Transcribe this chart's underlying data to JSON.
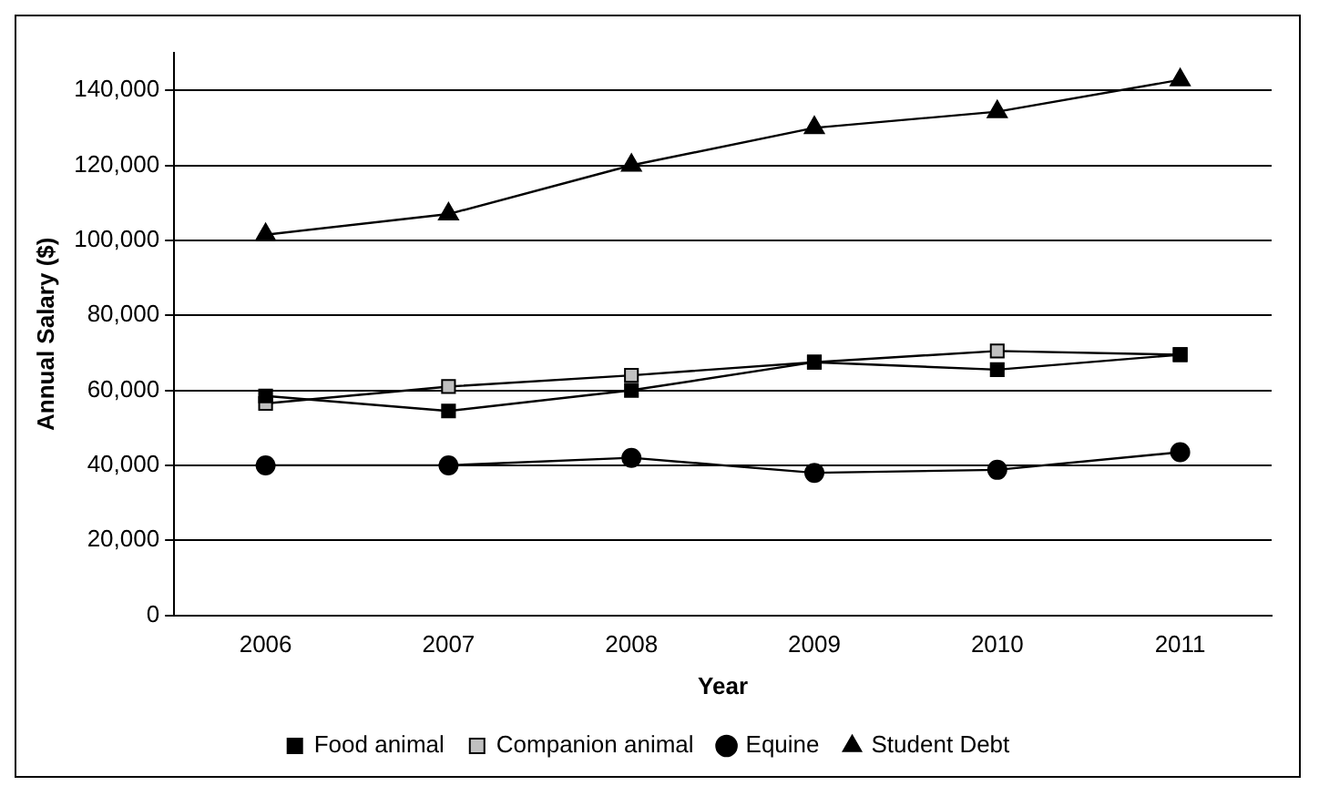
{
  "chart_data": {
    "type": "line",
    "xlabel": "Year",
    "ylabel": "Annual Salary ($)",
    "categories": [
      "2006",
      "2007",
      "2008",
      "2009",
      "2010",
      "2011"
    ],
    "series": [
      {
        "name": "Food animal",
        "color": "#000000",
        "marker": "square",
        "values": [
          58500,
          54500,
          60000,
          67500,
          65500,
          69500
        ]
      },
      {
        "name": "Companion animal",
        "color": "#000000",
        "colors": [
          "#c0c0c0",
          "#c0c0c0",
          "#c0c0c0",
          "#c0c0c0",
          "#c0c0c0",
          "#c0c0c0"
        ],
        "marker": "square",
        "values": [
          56500,
          61000,
          64000,
          67500,
          70500,
          69500
        ]
      },
      {
        "name": "Equine",
        "color": "#000000",
        "marker": "circle",
        "values": [
          40000,
          40000,
          42000,
          38000,
          38800,
          43500
        ]
      },
      {
        "name": "Student Debt",
        "color": "#000000",
        "marker": "triangle",
        "values": [
          101500,
          107000,
          120000,
          130000,
          134300,
          142800
        ]
      }
    ],
    "ylim": [
      0,
      150000
    ],
    "yticks": [
      0,
      {
        "value": 20000,
        "label": "20,000"
      },
      {
        "value": 40000,
        "label": "40,000"
      },
      {
        "value": 60000,
        "label": "60,000"
      },
      {
        "value": 80000,
        "label": "80,000"
      },
      {
        "value": 100000,
        "label": "100,000"
      },
      {
        "value": 120000,
        "label": "120,000"
      },
      {
        "value": 140000,
        "label": "140,000"
      }
    ],
    "grid": "y",
    "legend": "bottom"
  }
}
